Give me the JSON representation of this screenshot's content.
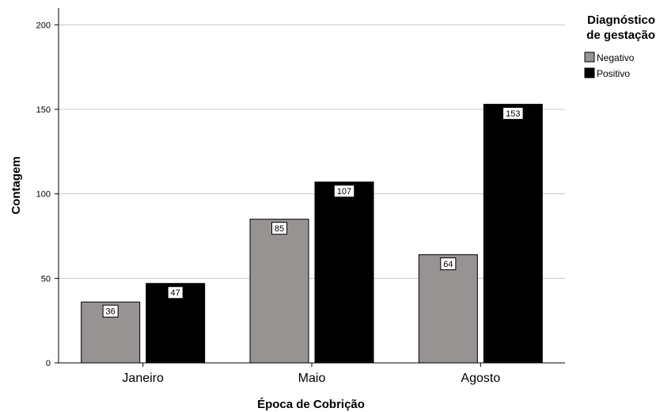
{
  "chart_data": {
    "type": "bar",
    "categories": [
      "Janeiro",
      "Maio",
      "Agosto"
    ],
    "series": [
      {
        "name": "Negativo",
        "values": [
          36,
          85,
          64
        ],
        "color": "#979392"
      },
      {
        "name": "Positivo",
        "values": [
          47,
          107,
          153
        ],
        "color": "#000000"
      }
    ],
    "xlabel": "Época de Cobrição",
    "ylabel": "Contagem",
    "ylim": [
      0,
      210
    ],
    "yticks": [
      0,
      50,
      100,
      150,
      200
    ],
    "grid": true,
    "legend": {
      "title_lines": [
        "Diagnóstico",
        "de gestação"
      ],
      "placement": "top-right"
    },
    "data_labels": true
  }
}
